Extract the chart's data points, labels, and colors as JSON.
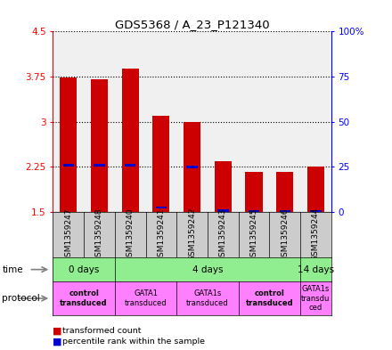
{
  "title": "GDS5368 / A_23_P121340",
  "samples": [
    "GSM1359247",
    "GSM1359248",
    "GSM1359240",
    "GSM1359241",
    "GSM1359242",
    "GSM1359243",
    "GSM1359245",
    "GSM1359246",
    "GSM1359244"
  ],
  "red_values": [
    3.73,
    3.7,
    3.88,
    3.1,
    2.99,
    2.34,
    2.17,
    2.17,
    2.25
  ],
  "blue_values": [
    2.27,
    2.27,
    2.27,
    1.57,
    2.25,
    1.52,
    1.51,
    1.51,
    1.51
  ],
  "ylim_left": [
    1.5,
    4.5
  ],
  "ylim_right": [
    0,
    100
  ],
  "left_ticks": [
    1.5,
    2.25,
    3.0,
    3.75,
    4.5
  ],
  "right_ticks": [
    0,
    25,
    50,
    75,
    100
  ],
  "right_tick_labels": [
    "0",
    "25",
    "50",
    "75",
    "100%"
  ],
  "bar_bottom": 1.5,
  "bg_color": "#ffffff",
  "bar_color_red": "#cc0000",
  "bar_color_blue": "#0000cc",
  "sample_bg": "#cccccc",
  "time_color": "#90EE90",
  "protocol_color": "#FF80FF"
}
